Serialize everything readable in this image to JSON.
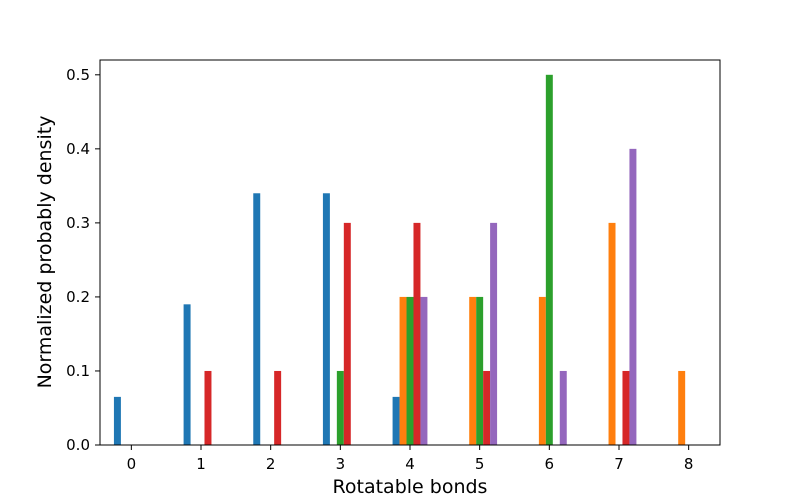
{
  "chart_data": {
    "type": "bar",
    "title": "",
    "xlabel": "Rotatable bonds",
    "ylabel": "Normalized probably density",
    "categories": [
      "0",
      "1",
      "2",
      "3",
      "4",
      "5",
      "6",
      "7",
      "8"
    ],
    "x": [
      0,
      1,
      2,
      3,
      4,
      5,
      6,
      7,
      8
    ],
    "xlim": [
      -0.45,
      8.45
    ],
    "ylim": [
      0,
      0.52
    ],
    "yticks": [
      0.0,
      0.1,
      0.2,
      0.3,
      0.4,
      0.5
    ],
    "ytick_labels": [
      "0.0",
      "0.1",
      "0.2",
      "0.3",
      "0.4",
      "0.5"
    ],
    "grid": false,
    "legend": "none",
    "series": [
      {
        "color": "#1f77b4",
        "x": [
          0,
          1,
          2,
          3,
          4
        ],
        "values": [
          0.065,
          0.19,
          0.34,
          0.34,
          0.065
        ]
      },
      {
        "color": "#ff7f0e",
        "x": [
          4,
          5,
          6,
          7,
          8
        ],
        "values": [
          0.2,
          0.2,
          0.2,
          0.3,
          0.1
        ]
      },
      {
        "color": "#2ca02c",
        "x": [
          3,
          4,
          5,
          6
        ],
        "values": [
          0.1,
          0.2,
          0.2,
          0.5
        ]
      },
      {
        "color": "#d62728",
        "x": [
          1,
          2,
          3,
          4,
          5,
          7
        ],
        "values": [
          0.1,
          0.1,
          0.3,
          0.3,
          0.1,
          0.1
        ]
      },
      {
        "color": "#9467bd",
        "x": [
          4,
          5,
          6,
          7
        ],
        "values": [
          0.2,
          0.3,
          0.1,
          0.4
        ]
      }
    ]
  }
}
